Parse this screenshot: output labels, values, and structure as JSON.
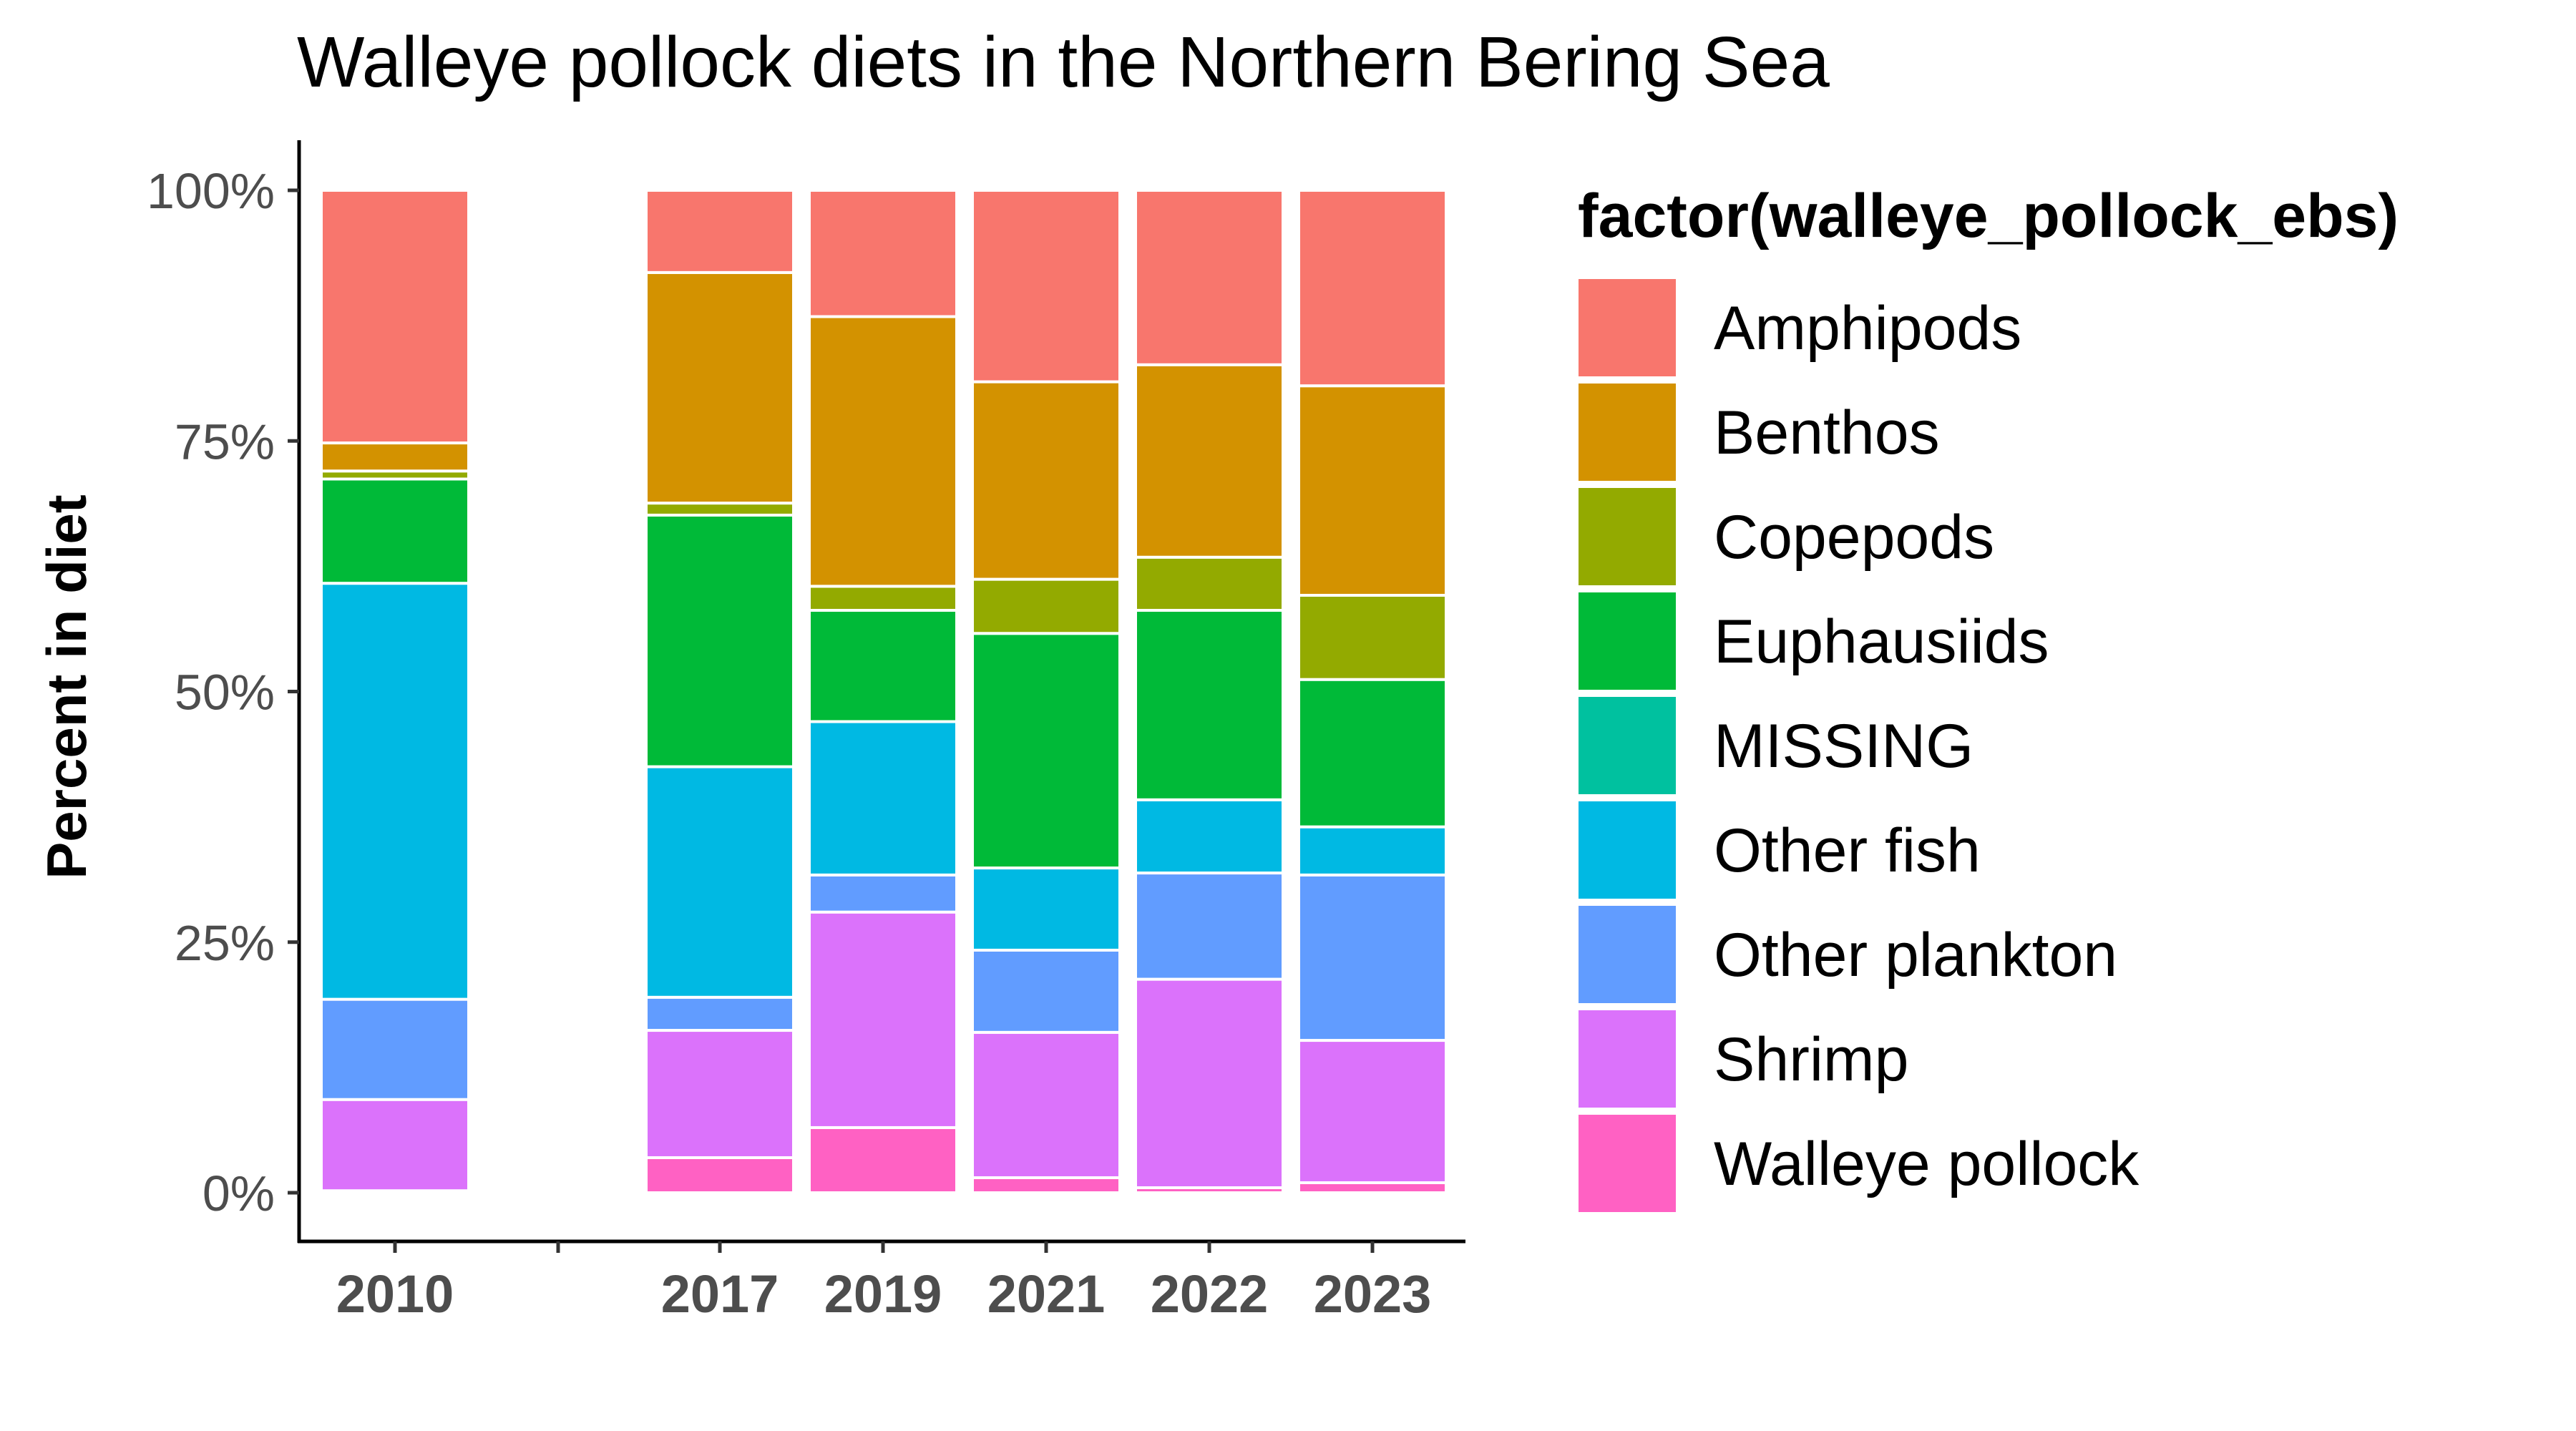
{
  "chart_data": {
    "type": "bar",
    "stacked": true,
    "title": "Walleye pollock diets in the Northern Bering Sea",
    "ylabel": "Percent in diet",
    "xlabel": "",
    "x_ticks": [
      "2010",
      "2017",
      "2019",
      "2021",
      "2022",
      "2023"
    ],
    "x_unlabeled_tick": 2015,
    "y_ticks": [
      "0%",
      "25%",
      "50%",
      "75%",
      "100%"
    ],
    "ylim": [
      0,
      100
    ],
    "legend_title": "factor(walleye_pollock_ebs)",
    "legend_position": "right",
    "grid": false,
    "categories": [
      "2010",
      "2017",
      "2019",
      "2021",
      "2022",
      "2023"
    ],
    "series": [
      {
        "name": "Walleye pollock",
        "color": "#FF61C3",
        "values": [
          0.2,
          3.5,
          6.5,
          1.5,
          0.5,
          1.0
        ]
      },
      {
        "name": "Shrimp",
        "color": "#DB72FB",
        "values": [
          9.1,
          12.7,
          21.5,
          14.5,
          20.8,
          14.2
        ]
      },
      {
        "name": "Other plankton",
        "color": "#619CFF",
        "values": [
          10.0,
          3.3,
          3.7,
          8.2,
          10.6,
          16.5
        ]
      },
      {
        "name": "Other fish",
        "color": "#00B9E3",
        "values": [
          41.5,
          23.0,
          15.3,
          8.2,
          7.3,
          4.8
        ]
      },
      {
        "name": "MISSING",
        "color": "#00C19F",
        "values": [
          0.0,
          0.0,
          0.0,
          0.0,
          0.0,
          0.0
        ]
      },
      {
        "name": "Euphausiids",
        "color": "#00BA38",
        "values": [
          10.4,
          25.1,
          11.1,
          23.4,
          18.9,
          14.7
        ]
      },
      {
        "name": "Copepods",
        "color": "#93AA00",
        "values": [
          0.8,
          1.2,
          2.4,
          5.4,
          5.3,
          8.4
        ]
      },
      {
        "name": "Benthos",
        "color": "#D39200",
        "values": [
          2.8,
          23.0,
          26.9,
          19.7,
          19.2,
          20.9
        ]
      },
      {
        "name": "Amphipods",
        "color": "#F8766D",
        "values": [
          25.2,
          8.2,
          12.6,
          19.1,
          17.4,
          19.5
        ]
      }
    ],
    "legend_order": [
      "Amphipods",
      "Benthos",
      "Copepods",
      "Euphausiids",
      "MISSING",
      "Other fish",
      "Other plankton",
      "Shrimp",
      "Walleye pollock"
    ]
  }
}
